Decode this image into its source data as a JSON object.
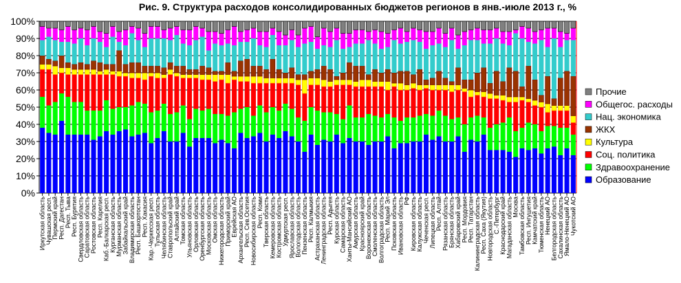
{
  "chart_data": {
    "type": "bar",
    "stacked": true,
    "percent": true,
    "title": "Рис. 9. Структура расходов консолидированных бюджетов регионов в янв.-июле 2013 г., %",
    "xlabel": "",
    "ylabel": "",
    "ylim": [
      0,
      100
    ],
    "yticks": [
      "0%",
      "10%",
      "20%",
      "30%",
      "40%",
      "50%",
      "60%",
      "70%",
      "80%",
      "90%",
      "100%"
    ],
    "grid": true,
    "legend_position": "right",
    "series": [
      {
        "name": "Образование",
        "color": "#0000FF"
      },
      {
        "name": "Здравоохранение",
        "color": "#00FF00"
      },
      {
        "name": "Соц. политика",
        "color": "#FF0000"
      },
      {
        "name": "Культура",
        "color": "#FFFF00"
      },
      {
        "name": "ЖКХ",
        "color": "#993300"
      },
      {
        "name": "Нац. экономика",
        "color": "#33CCCC"
      },
      {
        "name": "Общегос. расходы",
        "color": "#FF00FF"
      },
      {
        "name": "Прочие",
        "color": "#808080"
      }
    ],
    "legend_order": [
      "Прочие",
      "Общегос. расходы",
      "Нац. экономика",
      "ЖКХ",
      "Культура",
      "Соц. политика",
      "Здравоохранение",
      "Образование"
    ],
    "categories": [
      "Иркутская область",
      "Чувашская респ.",
      "Пермский край",
      "Респ. Дагестан",
      "Респ. Тыва",
      "Респ. Бурятия",
      "Свердловская область",
      "Саратовская область",
      "Ростовская область",
      "Респ. Карелия",
      "Каб.-Балкарская респ.",
      "Курганская область",
      "Мурманская область",
      "Забайкальский край",
      "Владимирская область",
      "Респ. Башкортостан",
      "Респ. Хакасия",
      "Кар.-Черкесская респ.",
      "Тульская область",
      "Челябинская область",
      "Ставропольский край",
      "Алтайский край",
      "Томская область",
      "Ульяновская область",
      "Орловская область",
      "Оренбургская область",
      "Московская область",
      "Омская область",
      "Нижегородская область",
      "Приморский край",
      "Еврейская АО",
      "Архангельская область",
      "Респ. Сев.Осетия",
      "Новосибирская область",
      "Респ. Коми",
      "Тверская область",
      "Кемеровская область",
      "Костромская область",
      "Удмуртская респ.",
      "Ярославская область",
      "Вологодская область",
      "Пензенская область",
      "Респ. Калмыкия",
      "Астраханская область",
      "Ленинградская область",
      "Респ. Адыгея",
      "Курская область",
      "Самарская область",
      "Ханты-Мансийский АО",
      "Амурская область",
      "Красноярский край",
      "Воронежская область",
      "Смоленская область",
      "Волгоградская область",
      "Респ. Марий Эл",
      "Псковская область",
      "Ивановская область",
      "РФ",
      "Кировская область",
      "Калужская область",
      "Чеченская респ.",
      "Липецкая область",
      "Респ. Алтай",
      "Рязанская область",
      "Брянская область",
      "Хабаровский край",
      "Респ. Мордовия",
      "Респ. Татарстан",
      "Калининградская область",
      "Респ. Саха (Якутия)",
      "Новгородская область",
      "С.-Петербург",
      "Краснодарский край",
      "Магаданская область",
      "Москва",
      "Тамбовская область",
      "Респ. Ингушетия",
      "Камчатский край",
      "Тюменская область",
      "Ненецкий АО",
      "Белгородская область",
      "Сахалинская область",
      "Ямало-Ненецкий АО",
      "Чукотский АО"
    ],
    "values_by_category_note": "each row follows series order",
    "values": [
      [
        38,
        18,
        16,
        3,
        5,
        9,
        8,
        3
      ],
      [
        35,
        16,
        21,
        3,
        3,
        13,
        5,
        4
      ],
      [
        34,
        19,
        16,
        5,
        3,
        12,
        7,
        4
      ],
      [
        42,
        16,
        12,
        3,
        7,
        8,
        7,
        5
      ],
      [
        34,
        22,
        13,
        4,
        3,
        12,
        9,
        3
      ],
      [
        34,
        19,
        16,
        3,
        3,
        12,
        8,
        5
      ],
      [
        34,
        19,
        16,
        3,
        4,
        14,
        6,
        4
      ],
      [
        34,
        14,
        21,
        3,
        3,
        11,
        9,
        5
      ],
      [
        31,
        17,
        21,
        3,
        5,
        13,
        7,
        3
      ],
      [
        33,
        15,
        21,
        2,
        5,
        12,
        6,
        6
      ],
      [
        36,
        18,
        15,
        3,
        3,
        10,
        8,
        7
      ],
      [
        34,
        15,
        20,
        2,
        4,
        16,
        6,
        3
      ],
      [
        36,
        14,
        18,
        3,
        12,
        5,
        6,
        6
      ],
      [
        37,
        13,
        18,
        2,
        5,
        11,
        9,
        5
      ],
      [
        33,
        18,
        16,
        3,
        6,
        17,
        4,
        3
      ],
      [
        34,
        19,
        14,
        3,
        6,
        13,
        7,
        4
      ],
      [
        35,
        17,
        14,
        4,
        4,
        11,
        8,
        7
      ],
      [
        29,
        18,
        21,
        2,
        4,
        16,
        7,
        3
      ],
      [
        32,
        16,
        19,
        3,
        4,
        16,
        7,
        3
      ],
      [
        36,
        16,
        15,
        2,
        4,
        17,
        5,
        5
      ],
      [
        30,
        16,
        23,
        3,
        4,
        13,
        7,
        4
      ],
      [
        30,
        17,
        21,
        2,
        4,
        18,
        5,
        3
      ],
      [
        35,
        16,
        16,
        2,
        5,
        13,
        8,
        5
      ],
      [
        27,
        16,
        24,
        2,
        3,
        14,
        9,
        5
      ],
      [
        32,
        17,
        18,
        2,
        3,
        17,
        8,
        3
      ],
      [
        32,
        16,
        18,
        3,
        5,
        17,
        5,
        4
      ],
      [
        32,
        17,
        17,
        3,
        4,
        10,
        11,
        6
      ],
      [
        29,
        17,
        19,
        4,
        2,
        16,
        7,
        6
      ],
      [
        31,
        15,
        20,
        3,
        2,
        15,
        7,
        7
      ],
      [
        29,
        16,
        19,
        5,
        7,
        11,
        8,
        5
      ],
      [
        26,
        21,
        19,
        2,
        3,
        15,
        11,
        3
      ],
      [
        35,
        14,
        16,
        3,
        9,
        11,
        6,
        6
      ],
      [
        32,
        18,
        15,
        3,
        10,
        10,
        7,
        5
      ],
      [
        33,
        12,
        19,
        4,
        6,
        16,
        6,
        4
      ],
      [
        35,
        16,
        13,
        4,
        6,
        12,
        8,
        6
      ],
      [
        30,
        17,
        17,
        3,
        5,
        13,
        9,
        6
      ],
      [
        34,
        16,
        14,
        3,
        11,
        14,
        4,
        4
      ],
      [
        32,
        16,
        16,
        3,
        5,
        14,
        8,
        6
      ],
      [
        36,
        16,
        12,
        3,
        3,
        16,
        6,
        8
      ],
      [
        33,
        16,
        15,
        3,
        6,
        16,
        6,
        5
      ],
      [
        30,
        14,
        19,
        3,
        3,
        16,
        7,
        8
      ],
      [
        24,
        18,
        16,
        8,
        3,
        18,
        9,
        4
      ],
      [
        34,
        16,
        13,
        4,
        4,
        17,
        9,
        3
      ],
      [
        28,
        20,
        15,
        4,
        5,
        12,
        7,
        9
      ],
      [
        31,
        16,
        15,
        4,
        8,
        12,
        10,
        4
      ],
      [
        30,
        17,
        15,
        3,
        7,
        13,
        9,
        6
      ],
      [
        34,
        12,
        17,
        3,
        2,
        21,
        7,
        4
      ],
      [
        29,
        14,
        20,
        3,
        4,
        14,
        9,
        7
      ],
      [
        32,
        19,
        12,
        3,
        10,
        9,
        8,
        7
      ],
      [
        30,
        14,
        18,
        3,
        9,
        13,
        8,
        5
      ],
      [
        30,
        14,
        18,
        4,
        8,
        13,
        8,
        5
      ],
      [
        28,
        18,
        16,
        4,
        3,
        20,
        5,
        6
      ],
      [
        30,
        15,
        17,
        3,
        7,
        15,
        8,
        5
      ],
      [
        30,
        14,
        18,
        3,
        5,
        14,
        10,
        6
      ],
      [
        33,
        13,
        14,
        5,
        7,
        13,
        8,
        7
      ],
      [
        26,
        18,
        18,
        2,
        6,
        19,
        6,
        5
      ],
      [
        29,
        13,
        18,
        4,
        7,
        16,
        9,
        4
      ],
      [
        29,
        15,
        16,
        3,
        8,
        17,
        6,
        6
      ],
      [
        30,
        14,
        17,
        3,
        5,
        20,
        7,
        4
      ],
      [
        30,
        15,
        15,
        3,
        9,
        16,
        7,
        5
      ],
      [
        34,
        12,
        15,
        2,
        3,
        18,
        10,
        6
      ],
      [
        31,
        14,
        15,
        3,
        4,
        19,
        8,
        6
      ],
      [
        33,
        15,
        12,
        3,
        8,
        16,
        9,
        4
      ],
      [
        30,
        15,
        15,
        3,
        4,
        18,
        8,
        7
      ],
      [
        30,
        13,
        16,
        4,
        2,
        24,
        7,
        4
      ],
      [
        33,
        11,
        16,
        3,
        10,
        11,
        8,
        8
      ],
      [
        24,
        16,
        19,
        2,
        5,
        20,
        8,
        6
      ],
      [
        31,
        13,
        12,
        4,
        6,
        23,
        6,
        5
      ],
      [
        30,
        15,
        12,
        2,
        11,
        19,
        7,
        4
      ],
      [
        34,
        10,
        12,
        3,
        14,
        14,
        8,
        5
      ],
      [
        25,
        13,
        17,
        3,
        6,
        23,
        8,
        5
      ],
      [
        25,
        15,
        15,
        2,
        14,
        19,
        6,
        4
      ],
      [
        25,
        16,
        13,
        3,
        8,
        22,
        7,
        6
      ],
      [
        24,
        20,
        9,
        3,
        17,
        13,
        8,
        6
      ],
      [
        21,
        15,
        17,
        3,
        15,
        22,
        2,
        5
      ],
      [
        26,
        12,
        16,
        2,
        6,
        28,
        7,
        3
      ],
      [
        25,
        16,
        12,
        2,
        19,
        14,
        8,
        4
      ],
      [
        26,
        14,
        11,
        3,
        12,
        21,
        7,
        6
      ],
      [
        23,
        13,
        14,
        3,
        4,
        32,
        6,
        5
      ],
      [
        26,
        13,
        8,
        5,
        16,
        17,
        11,
        4
      ],
      [
        27,
        12,
        9,
        3,
        4,
        35,
        6,
        4
      ],
      [
        22,
        16,
        10,
        3,
        16,
        18,
        9,
        6
      ],
      [
        26,
        12,
        10,
        3,
        20,
        18,
        4,
        7
      ],
      [
        22,
        12,
        7,
        4,
        23,
        21,
        7,
        4
      ]
    ]
  }
}
